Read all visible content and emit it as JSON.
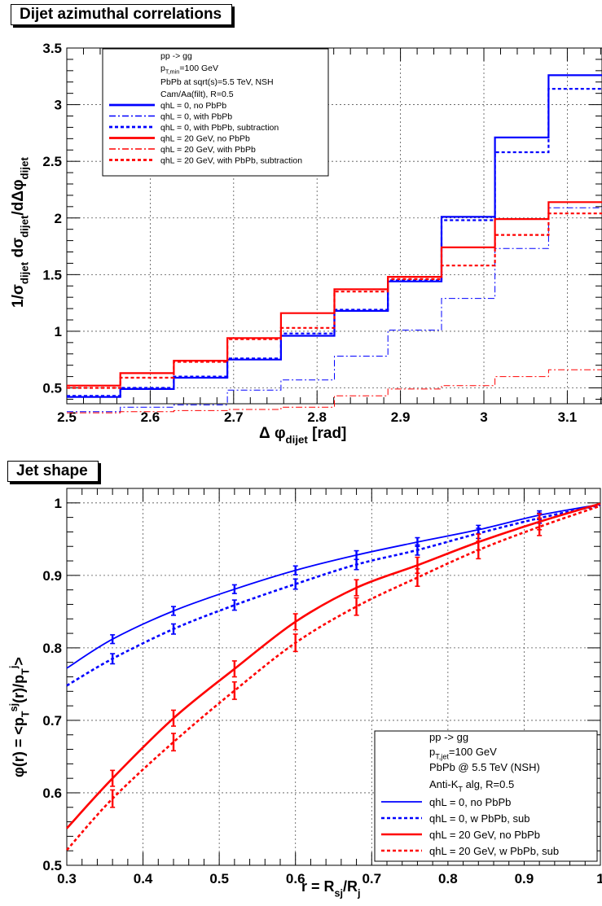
{
  "chart_data": [
    {
      "type": "line",
      "title": "Dijet azimuthal correlations",
      "xlabel": "Δ φ_dijet [rad]",
      "ylabel": "1/σ_dijet dσ_dijet/dΔφ_dijet",
      "xlim": [
        2.5,
        3.14159
      ],
      "ylim": [
        0.36,
        3.5
      ],
      "grid": true,
      "legend_position": "top-left",
      "x_ticks": [
        2.5,
        2.6,
        2.7,
        2.8,
        2.9,
        3.0,
        3.1
      ],
      "x_tick_labels": [
        "2.5",
        "2.6",
        "2.7",
        "2.8",
        "2.9",
        "3",
        "3.1"
      ],
      "y_ticks": [
        0.5,
        1.0,
        1.5,
        2.0,
        2.5,
        3.0,
        3.5
      ],
      "y_tick_labels": [
        "0.5",
        "1",
        "1.5",
        "2",
        "2.5",
        "3",
        "3.5"
      ],
      "legend_header": [
        "pp -> gg",
        "p_T,min=100 GeV",
        "PbPb at sqrt(s)=5.5 TeV, NSH",
        "Cam/Aa(filt), R=0.5"
      ],
      "bin_edges": [
        2.5,
        2.5642,
        2.6283,
        2.6925,
        2.7567,
        2.8208,
        2.885,
        2.9492,
        3.0133,
        3.0775,
        3.1416
      ],
      "series": [
        {
          "name": "qhL = 0, no PbPb",
          "color": "#0000ff",
          "style": "solid",
          "width": 2.2,
          "values": [
            0.42,
            0.49,
            0.59,
            0.75,
            0.96,
            1.18,
            1.44,
            2.01,
            2.71,
            3.26
          ]
        },
        {
          "name": "qhL = 0, with PbPb",
          "color": "#0000ff",
          "style": "dashdot",
          "width": 1,
          "values": [
            0.29,
            0.33,
            0.35,
            0.48,
            0.57,
            0.78,
            1.01,
            1.29,
            1.73,
            2.09
          ]
        },
        {
          "name": "qhL = 0, with PbPb, subtraction",
          "color": "#0000ff",
          "style": "dotted",
          "width": 2.2,
          "values": [
            0.43,
            0.5,
            0.6,
            0.76,
            0.98,
            1.19,
            1.45,
            1.98,
            2.58,
            3.14
          ]
        },
        {
          "name": "qhL = 20 GeV, no PbPb",
          "color": "#ff0000",
          "style": "solid",
          "width": 2.2,
          "values": [
            0.52,
            0.63,
            0.74,
            0.94,
            1.16,
            1.37,
            1.48,
            1.74,
            1.99,
            2.14
          ]
        },
        {
          "name": "qhL = 20 GeV, with PbPb",
          "color": "#ff0000",
          "style": "dashdot",
          "width": 1,
          "values": [
            0.28,
            0.29,
            0.3,
            0.31,
            0.33,
            0.43,
            0.49,
            0.52,
            0.6,
            0.66
          ]
        },
        {
          "name": "qhL = 20 GeV, with PbPb, subtraction",
          "color": "#ff0000",
          "style": "dotted",
          "width": 2.2,
          "values": [
            0.5,
            0.59,
            0.73,
            0.93,
            1.03,
            1.35,
            1.46,
            1.58,
            1.85,
            2.04
          ]
        }
      ]
    },
    {
      "type": "line",
      "title": "Jet shape",
      "xlabel": "r = R_sj/R_j",
      "ylabel": "φ(r) = <p_T^sj(r)/p_T^j>",
      "xlim": [
        0.3,
        1.0
      ],
      "ylim": [
        0.5,
        1.02
      ],
      "grid": true,
      "legend_position": "bottom-right",
      "x_ticks": [
        0.3,
        0.4,
        0.5,
        0.6,
        0.7,
        0.8,
        0.9,
        1.0
      ],
      "x_tick_labels": [
        "0.3",
        "0.4",
        "0.5",
        "0.6",
        "0.7",
        "0.8",
        "0.9",
        "1"
      ],
      "y_ticks": [
        0.5,
        0.6,
        0.7,
        0.8,
        0.9,
        1.0
      ],
      "y_tick_labels": [
        "0.5",
        "0.6",
        "0.7",
        "0.8",
        "0.9",
        "1"
      ],
      "legend_header": [
        "pp -> gg",
        "p_T,jet=100 GeV",
        "PbPb @ 5.5 TeV (NSH)",
        "Anti-K_T alg, R=0.5"
      ],
      "points_x": [
        0.36,
        0.44,
        0.52,
        0.6,
        0.68,
        0.76,
        0.84,
        0.92
      ],
      "series": [
        {
          "name": "qhL = 0, no PbPb",
          "color": "#0000ff",
          "style": "solid",
          "width": 1.8,
          "curve_x": [
            0.3,
            0.36,
            0.44,
            0.52,
            0.6,
            0.68,
            0.76,
            0.84,
            0.92,
            1.0
          ],
          "curve_y": [
            0.772,
            0.812,
            0.851,
            0.881,
            0.907,
            0.928,
            0.946,
            0.963,
            0.983,
            0.998
          ],
          "points_y": [
            0.812,
            0.851,
            0.881,
            0.907,
            0.928,
            0.946,
            0.963,
            0.983
          ],
          "error": 0.006
        },
        {
          "name": "qhL = 0, w PbPb, sub",
          "color": "#0000ff",
          "style": "dotted",
          "width": 2.6,
          "curve_x": [
            0.3,
            0.36,
            0.44,
            0.52,
            0.6,
            0.68,
            0.76,
            0.84,
            0.92,
            1.0
          ],
          "curve_y": [
            0.748,
            0.785,
            0.826,
            0.859,
            0.888,
            0.915,
            0.935,
            0.958,
            0.979,
            0.997
          ],
          "points_y": [
            0.785,
            0.826,
            0.859,
            0.888,
            0.915,
            0.935,
            0.958,
            0.979
          ],
          "error": 0.007
        },
        {
          "name": "qhL = 20 GeV, no PbPb",
          "color": "#ff0000",
          "style": "solid",
          "width": 2.6,
          "curve_x": [
            0.3,
            0.36,
            0.44,
            0.52,
            0.6,
            0.68,
            0.76,
            0.84,
            0.92,
            1.0
          ],
          "curve_y": [
            0.551,
            0.62,
            0.703,
            0.771,
            0.836,
            0.883,
            0.914,
            0.946,
            0.974,
            0.999
          ],
          "points_y": [
            0.62,
            0.703,
            0.771,
            0.836,
            0.883,
            0.914,
            0.946,
            0.974
          ],
          "error": 0.011
        },
        {
          "name": "qhL = 20 GeV, w PbPb, sub",
          "color": "#ff0000",
          "style": "dotted",
          "width": 2.6,
          "curve_x": [
            0.3,
            0.36,
            0.44,
            0.52,
            0.6,
            0.68,
            0.76,
            0.84,
            0.92,
            1.0
          ],
          "curve_y": [
            0.521,
            0.592,
            0.67,
            0.741,
            0.807,
            0.857,
            0.897,
            0.935,
            0.967,
            0.996
          ],
          "points_y": [
            0.592,
            0.67,
            0.741,
            0.807,
            0.857,
            0.897,
            0.935,
            0.967
          ],
          "error": 0.012
        }
      ]
    }
  ]
}
